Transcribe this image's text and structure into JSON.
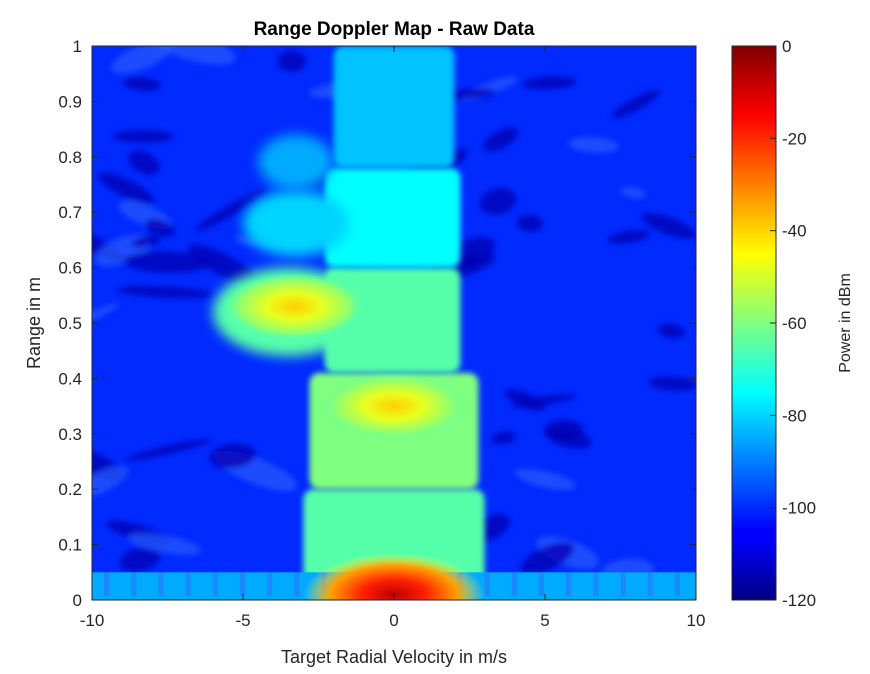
{
  "chart_data": {
    "type": "heatmap",
    "title": "Range Doppler Map - Raw Data",
    "xlabel": "Target Radial Velocity in m/s",
    "ylabel": "Range in m",
    "xlim": [
      -10,
      10
    ],
    "ylim": [
      0,
      1
    ],
    "xticks": [
      -10,
      -5,
      0,
      5,
      10
    ],
    "yticks": [
      0,
      0.1,
      0.2,
      0.3,
      0.4,
      0.5,
      0.6,
      0.7,
      0.8,
      0.9,
      1
    ],
    "colorbar": {
      "label": "Power in dBm",
      "min": -120,
      "max": 0,
      "ticks": [
        0,
        -20,
        -40,
        -60,
        -80,
        -100,
        -120
      ],
      "colormap": "jet"
    },
    "background_level_dbm": -100,
    "features": [
      {
        "shape": "column",
        "x_range": [
          -3,
          3
        ],
        "y_range": [
          0,
          0.2
        ],
        "level_dbm": -65
      },
      {
        "shape": "column",
        "x_range": [
          -2.8,
          2.8
        ],
        "y_range": [
          0.2,
          0.41
        ],
        "level_dbm": -60
      },
      {
        "shape": "column",
        "x_range": [
          -2.3,
          2.2
        ],
        "y_range": [
          0.41,
          0.6
        ],
        "level_dbm": -65
      },
      {
        "shape": "column",
        "x_range": [
          -2.3,
          2.2
        ],
        "y_range": [
          0.6,
          0.78
        ],
        "level_dbm": -75
      },
      {
        "shape": "column",
        "x_range": [
          -2.0,
          2.0
        ],
        "y_range": [
          0.78,
          1.0
        ],
        "level_dbm": -82
      },
      {
        "shape": "peak",
        "x": 0,
        "y": 0.01,
        "level_dbm": -5
      },
      {
        "shape": "peak",
        "x": -3.3,
        "y": 0.53,
        "level_dbm": -45
      },
      {
        "shape": "peak",
        "x": 0,
        "y": 0.35,
        "level_dbm": -50
      },
      {
        "shape": "blob",
        "x_range": [
          -6,
          -1
        ],
        "y_range": [
          0.44,
          0.6
        ],
        "level_dbm": -65
      },
      {
        "shape": "blob",
        "x_range": [
          -5,
          -1.5
        ],
        "y_range": [
          0.62,
          0.74
        ],
        "level_dbm": -80
      },
      {
        "shape": "blob",
        "x_range": [
          -4.5,
          -2
        ],
        "y_range": [
          0.74,
          0.84
        ],
        "level_dbm": -85
      },
      {
        "shape": "band",
        "x_range": [
          -10,
          10
        ],
        "y_range": [
          0,
          0.05
        ],
        "level_dbm": -85
      }
    ]
  }
}
